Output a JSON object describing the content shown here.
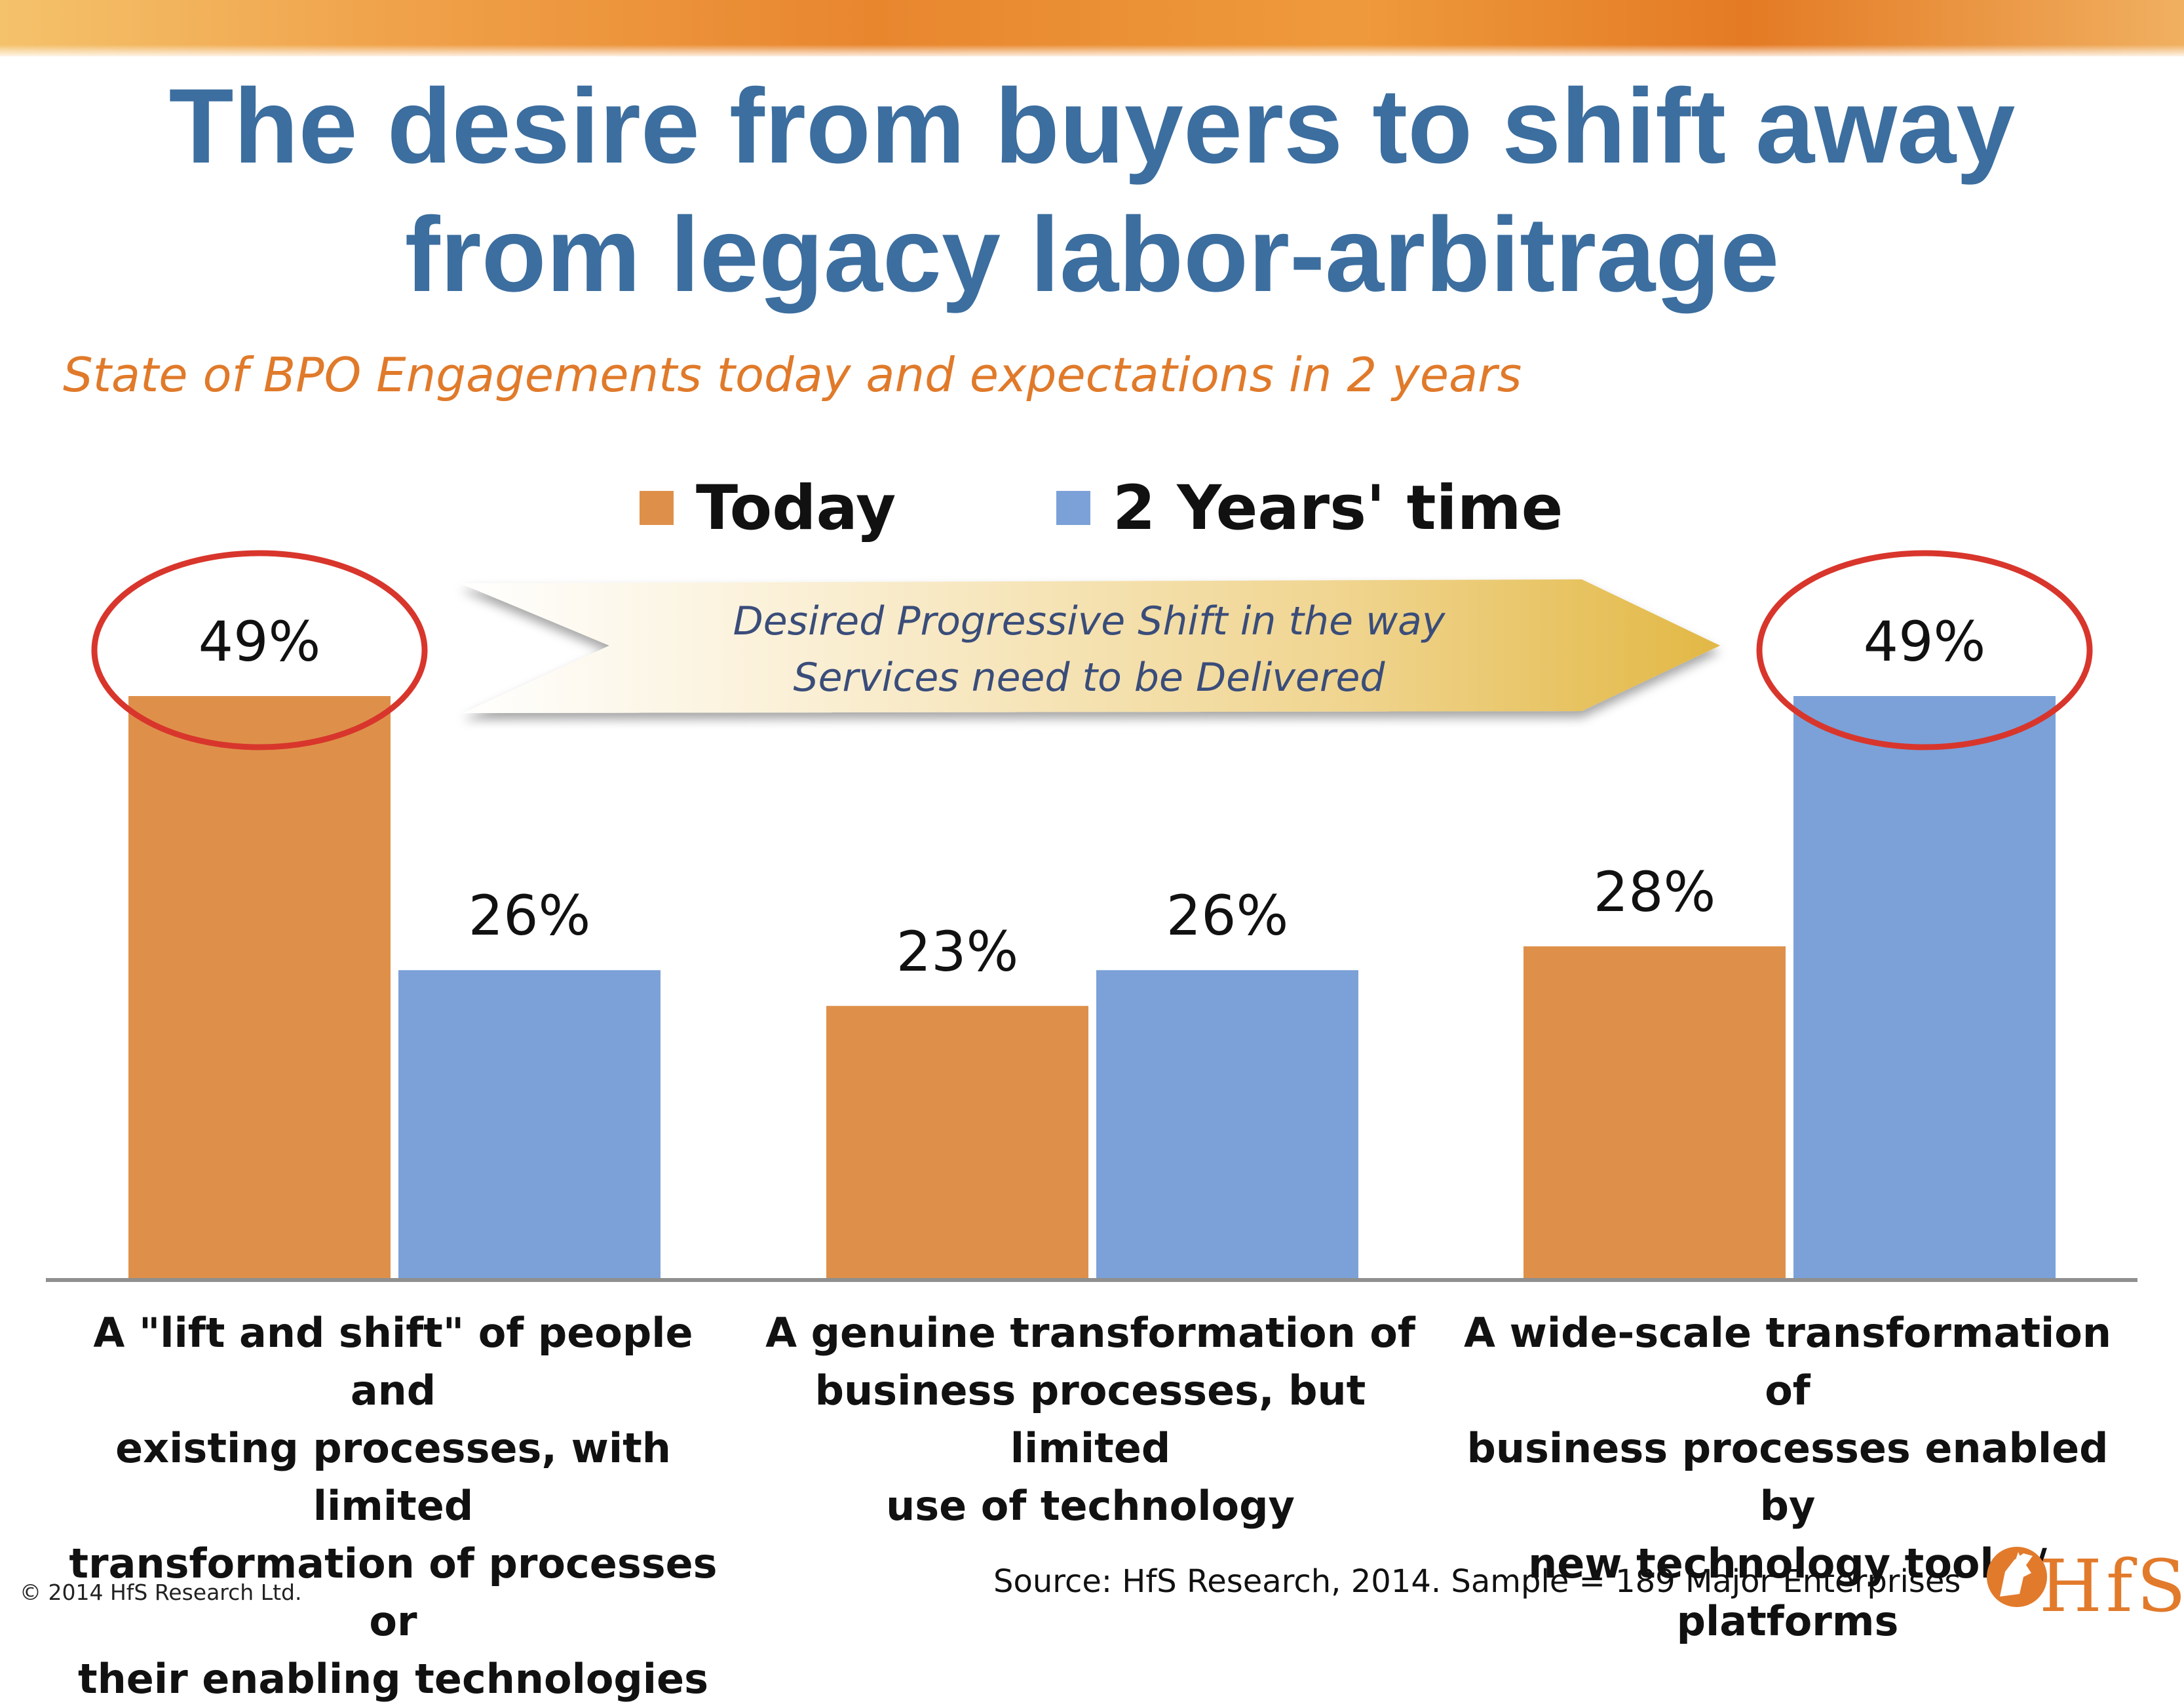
{
  "title": {
    "line1": "The desire from buyers to shift away",
    "line2": "from legacy labor-arbitrage"
  },
  "subtitle": "State of BPO Engagements today and expectations in 2 years",
  "chart_data": {
    "type": "bar",
    "categories": [
      "A \"lift and shift\" of people and existing processes, with limited transformation of processes or their enabling technologies",
      "A genuine transformation of business processes, but limited use of technology",
      "A wide-scale transformation of business processes enabled by new technology tools / platforms"
    ],
    "category_lines": [
      [
        "A \"lift and shift\" of people and",
        "existing processes, with limited",
        "transformation of processes or",
        "their enabling technologies"
      ],
      [
        "A genuine transformation of",
        "business processes, but limited",
        "use of technology"
      ],
      [
        "A wide-scale transformation of",
        "business processes enabled by",
        "new technology tools / platforms"
      ]
    ],
    "series": [
      {
        "name": "Today",
        "values": [
          49,
          23,
          28
        ],
        "color": "#de904a"
      },
      {
        "name": "2 Years' time",
        "values": [
          26,
          26,
          49
        ],
        "color": "#7ba1d8"
      }
    ],
    "data_labels": [
      [
        "49%",
        "23%",
        "28%"
      ],
      [
        "26%",
        "26%",
        "49%"
      ]
    ],
    "value_format": "percent",
    "ylim": [
      0,
      49
    ],
    "grid": false,
    "legend_position": "top-center",
    "highlighted": [
      {
        "series": 0,
        "category": 0
      },
      {
        "series": 1,
        "category": 2
      }
    ],
    "annotation": {
      "line1": "Desired Progressive Shift in the way",
      "line2": "Services need to be  Delivered"
    }
  },
  "footer": {
    "copyright": "© 2014 HfS Research Ltd.",
    "source": "Source:  HfS Research, 2014.  Sample = 189 Major Enterprises",
    "logo_text": "HfS"
  },
  "colors": {
    "title": "#3c6e9f",
    "subtitle": "#e07a2a",
    "today": "#de904a",
    "future": "#7ba1d8",
    "highlight_circle": "#d8362c",
    "annotation_text": "#3a4d7a"
  }
}
